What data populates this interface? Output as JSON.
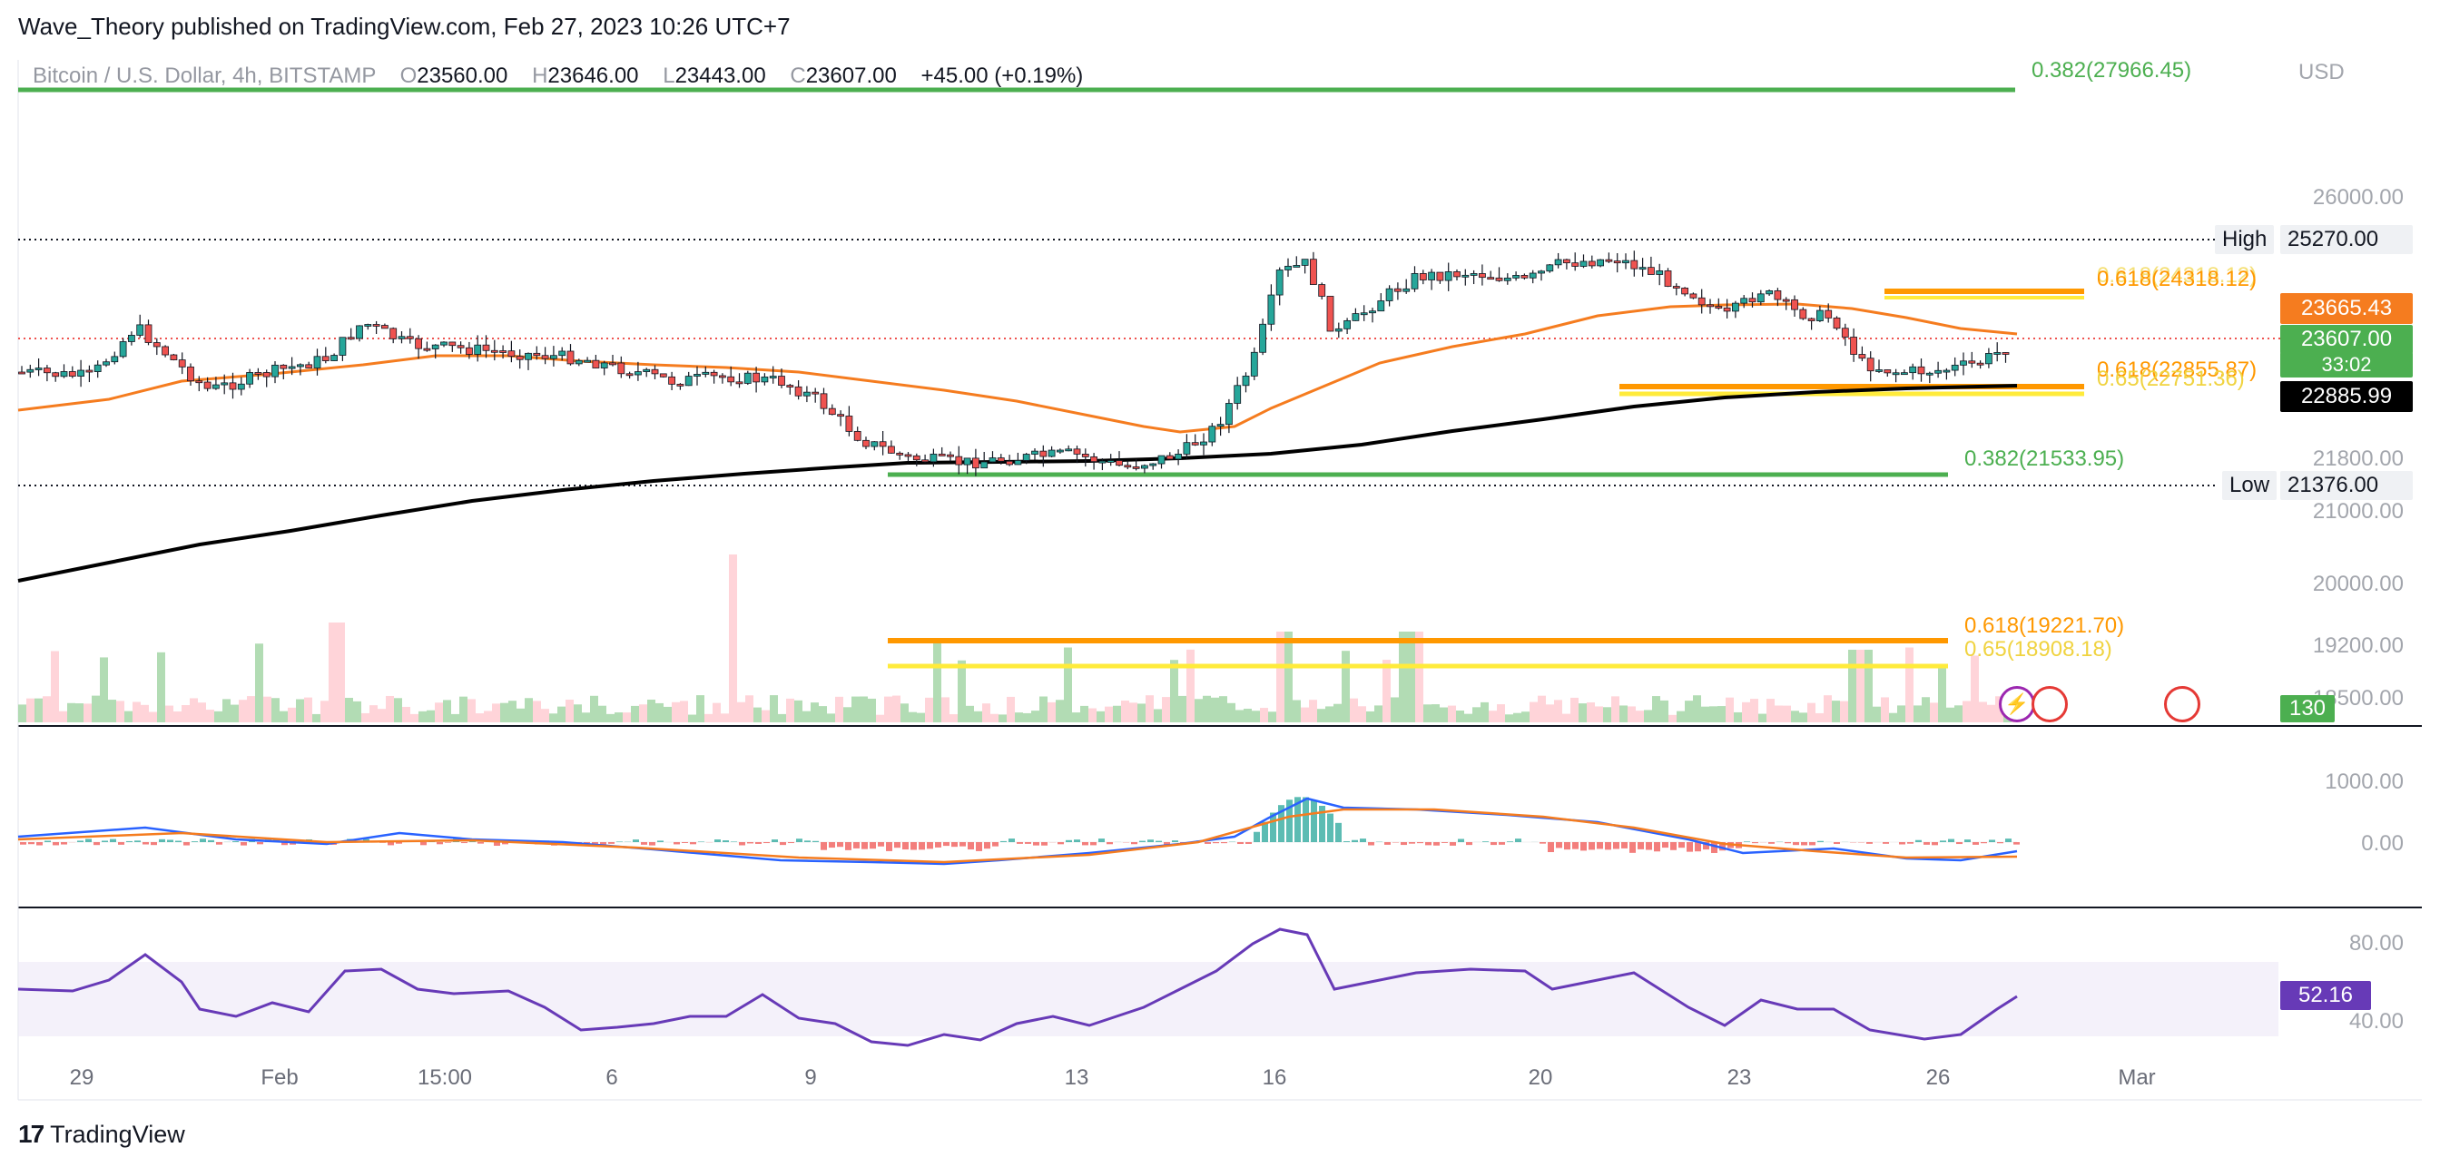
{
  "header": {
    "published": "Wave_Theory published on TradingView.com, Feb 27, 2023 10:26 UTC+7"
  },
  "legend": {
    "symbol": "Bitcoin / U.S. Dollar, 4h, BITSTAMP",
    "o_label": "O",
    "o_value": "23560.00",
    "h_label": "H",
    "h_value": "23646.00",
    "l_label": "L",
    "l_value": "23443.00",
    "c_label": "C",
    "c_value": "23607.00",
    "change": "+45.00 (+0.19%)"
  },
  "price_axis": {
    "currency": "USD",
    "labels": [
      "26000.00",
      "21800.00",
      "21000.00",
      "20000.00",
      "19200.00",
      "18500.00"
    ]
  },
  "tags": {
    "high_label": "High",
    "high_value": "25270.00",
    "low_label": "Low",
    "low_value": "21376.00",
    "ma50_value": "23665.43",
    "last_price": "23607.00",
    "countdown": "33:02",
    "ma200_value": "22885.99",
    "volume_value": "130",
    "macd_value": "0.00",
    "rsi_value": "52.16"
  },
  "fib_levels": {
    "top": "0.382(27966.45)",
    "upper_618": "0.618(24318.12)",
    "upper_618_ghost": "0.618(24318.12)",
    "mid_618": "0.618(22855.87)",
    "mid_65": "0.65(22751.36)",
    "support_382": "0.382(21533.95)",
    "lower_618": "0.618(19221.70)",
    "lower_65": "0.65(18908.18)"
  },
  "macd_axis": [
    "1000.00",
    "0.00"
  ],
  "rsi_axis": [
    "80.00",
    "40.00"
  ],
  "time_axis": [
    "29",
    "Feb",
    "15:00",
    "6",
    "9",
    "13",
    "16",
    "20",
    "23",
    "26",
    "Mar"
  ],
  "footer": {
    "brand": "TradingView",
    "logo": "17"
  },
  "colors": {
    "up": "#26a69a",
    "down": "#ef5350",
    "ma50": "#f57c1f",
    "ma200": "#000000",
    "fib_green": "#4caf50",
    "fib_orange": "#ff9800",
    "fib_yellow": "#ffeb3b",
    "rsi": "#673ab7",
    "macd": "#2962ff"
  }
}
